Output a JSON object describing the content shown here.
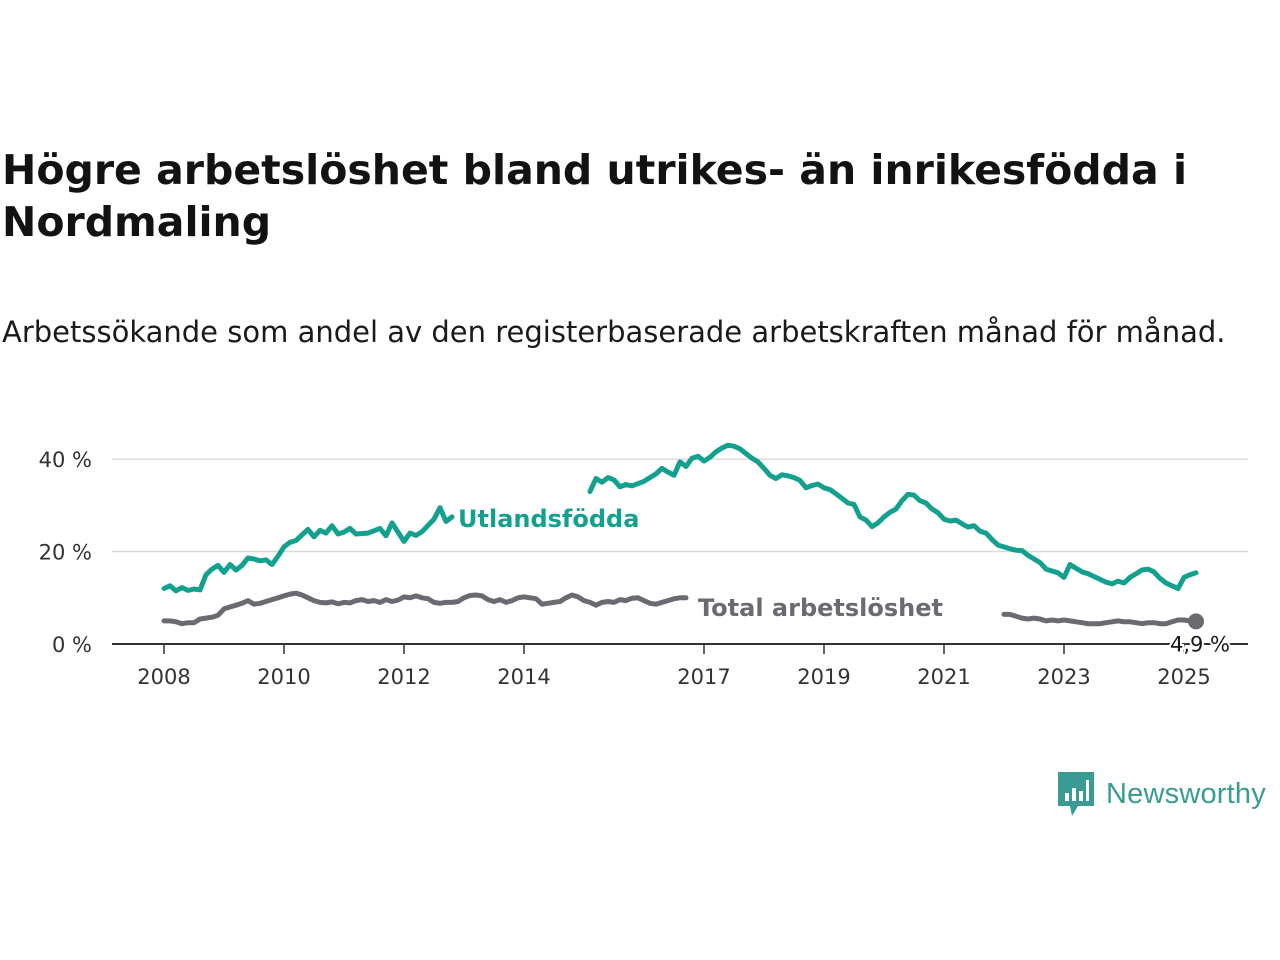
{
  "header": {
    "title": "Högre arbetslöshet bland utrikes- än inrikesfödda i Nordmaling",
    "subtitle": "Arbetssökande som andel av den registerbaserade arbetskraften månad för månad."
  },
  "brand": {
    "name": "Newsworthy",
    "color": "#3a9b94",
    "icon": "newsworthy-logo-icon"
  },
  "chart_data": {
    "type": "line",
    "ylim": [
      0,
      45
    ],
    "y_ticks": [
      {
        "value": 0,
        "label": "0 %"
      },
      {
        "value": 20,
        "label": "20 %"
      },
      {
        "value": 40,
        "label": "40 %"
      }
    ],
    "x_range": [
      2008.0,
      2025.2
    ],
    "x_ticks": [
      {
        "value": 2008,
        "label": "2008"
      },
      {
        "value": 2010,
        "label": "2010"
      },
      {
        "value": 2012,
        "label": "2012"
      },
      {
        "value": 2014,
        "label": "2014"
      },
      {
        "value": 2017,
        "label": "2017"
      },
      {
        "value": 2019,
        "label": "2019"
      },
      {
        "value": 2021,
        "label": "2021"
      },
      {
        "value": 2023,
        "label": "2023"
      },
      {
        "value": 2025,
        "label": "2025"
      }
    ],
    "grid": "horizontal",
    "legend": "inline labels",
    "series": [
      {
        "name": "Utlandsfödda",
        "color": "#14a08e",
        "points": [
          [
            2008.0,
            12.0
          ],
          [
            2008.1,
            12.6
          ],
          [
            2008.2,
            11.5
          ],
          [
            2008.3,
            12.2
          ],
          [
            2008.4,
            11.6
          ],
          [
            2008.5,
            11.9
          ],
          [
            2008.6,
            11.7
          ],
          [
            2008.7,
            15.0
          ],
          [
            2008.8,
            16.2
          ],
          [
            2008.9,
            17.0
          ],
          [
            2009.0,
            15.5
          ],
          [
            2009.1,
            17.2
          ],
          [
            2009.2,
            16.0
          ],
          [
            2009.3,
            17.0
          ],
          [
            2009.4,
            18.6
          ],
          [
            2009.5,
            18.4
          ],
          [
            2009.6,
            18.0
          ],
          [
            2009.7,
            18.2
          ],
          [
            2009.8,
            17.2
          ],
          [
            2009.9,
            19.0
          ],
          [
            2010.0,
            21.0
          ],
          [
            2010.1,
            22.0
          ],
          [
            2010.2,
            22.4
          ],
          [
            2010.3,
            23.6
          ],
          [
            2010.4,
            24.8
          ],
          [
            2010.5,
            23.2
          ],
          [
            2010.6,
            24.6
          ],
          [
            2010.7,
            24.0
          ],
          [
            2010.8,
            25.6
          ],
          [
            2010.9,
            23.8
          ],
          [
            2011.0,
            24.2
          ],
          [
            2011.1,
            25.0
          ],
          [
            2011.2,
            23.8
          ],
          [
            2011.4,
            24.0
          ],
          [
            2011.6,
            25.0
          ],
          [
            2011.7,
            23.4
          ],
          [
            2011.8,
            26.2
          ],
          [
            2011.9,
            24.2
          ],
          [
            2012.0,
            22.2
          ],
          [
            2012.1,
            24.0
          ],
          [
            2012.2,
            23.5
          ],
          [
            2012.3,
            24.3
          ],
          [
            2012.5,
            27.0
          ],
          [
            2012.6,
            29.5
          ],
          [
            2012.7,
            26.5
          ],
          [
            2012.8,
            27.5
          ],
          [
            2015.1,
            33.0
          ],
          [
            2015.2,
            35.8
          ],
          [
            2015.3,
            35.0
          ],
          [
            2015.4,
            36.0
          ],
          [
            2015.5,
            35.5
          ],
          [
            2015.6,
            34.0
          ],
          [
            2015.7,
            34.5
          ],
          [
            2015.8,
            34.2
          ],
          [
            2016.0,
            35.2
          ],
          [
            2016.2,
            36.8
          ],
          [
            2016.3,
            38.0
          ],
          [
            2016.4,
            37.2
          ],
          [
            2016.5,
            36.5
          ],
          [
            2016.6,
            39.4
          ],
          [
            2016.7,
            38.4
          ],
          [
            2016.8,
            40.2
          ],
          [
            2016.9,
            40.6
          ],
          [
            2017.0,
            39.6
          ],
          [
            2017.1,
            40.4
          ],
          [
            2017.2,
            41.6
          ],
          [
            2017.3,
            42.4
          ],
          [
            2017.4,
            43.0
          ],
          [
            2017.5,
            42.8
          ],
          [
            2017.6,
            42.2
          ],
          [
            2017.7,
            41.2
          ],
          [
            2017.8,
            40.2
          ],
          [
            2017.9,
            39.4
          ],
          [
            2018.0,
            38.0
          ],
          [
            2018.1,
            36.5
          ],
          [
            2018.2,
            35.8
          ],
          [
            2018.3,
            36.6
          ],
          [
            2018.4,
            36.4
          ],
          [
            2018.5,
            36.0
          ],
          [
            2018.6,
            35.4
          ],
          [
            2018.7,
            33.8
          ],
          [
            2018.8,
            34.3
          ],
          [
            2018.9,
            34.6
          ],
          [
            2019.0,
            33.8
          ],
          [
            2019.1,
            33.4
          ],
          [
            2019.2,
            32.5
          ],
          [
            2019.3,
            31.5
          ],
          [
            2019.4,
            30.5
          ],
          [
            2019.5,
            30.2
          ],
          [
            2019.6,
            27.5
          ],
          [
            2019.7,
            26.8
          ],
          [
            2019.8,
            25.4
          ],
          [
            2019.9,
            26.2
          ],
          [
            2020.0,
            27.5
          ],
          [
            2020.1,
            28.5
          ],
          [
            2020.2,
            29.2
          ],
          [
            2020.3,
            31.0
          ],
          [
            2020.4,
            32.4
          ],
          [
            2020.5,
            32.2
          ],
          [
            2020.6,
            31.0
          ],
          [
            2020.7,
            30.5
          ],
          [
            2020.8,
            29.2
          ],
          [
            2020.9,
            28.4
          ],
          [
            2021.0,
            27.0
          ],
          [
            2021.1,
            26.6
          ],
          [
            2021.2,
            26.8
          ],
          [
            2021.3,
            26.0
          ],
          [
            2021.4,
            25.3
          ],
          [
            2021.5,
            25.6
          ],
          [
            2021.6,
            24.4
          ],
          [
            2021.7,
            24.0
          ],
          [
            2021.8,
            22.6
          ],
          [
            2021.9,
            21.4
          ],
          [
            2022.0,
            21.0
          ],
          [
            2022.1,
            20.6
          ],
          [
            2022.2,
            20.3
          ],
          [
            2022.3,
            20.2
          ],
          [
            2022.4,
            19.2
          ],
          [
            2022.5,
            18.4
          ],
          [
            2022.6,
            17.6
          ],
          [
            2022.7,
            16.2
          ],
          [
            2022.8,
            15.8
          ],
          [
            2022.9,
            15.4
          ],
          [
            2023.0,
            14.4
          ],
          [
            2023.1,
            17.2
          ],
          [
            2023.2,
            16.4
          ],
          [
            2023.3,
            15.6
          ],
          [
            2023.4,
            15.2
          ],
          [
            2023.5,
            14.6
          ],
          [
            2023.6,
            14.0
          ],
          [
            2023.7,
            13.4
          ],
          [
            2023.8,
            13.0
          ],
          [
            2023.9,
            13.6
          ],
          [
            2024.0,
            13.2
          ],
          [
            2024.1,
            14.4
          ],
          [
            2024.2,
            15.2
          ],
          [
            2024.3,
            16.0
          ],
          [
            2024.4,
            16.2
          ],
          [
            2024.5,
            15.6
          ],
          [
            2024.6,
            14.2
          ],
          [
            2024.7,
            13.2
          ],
          [
            2024.8,
            12.6
          ],
          [
            2024.9,
            12.0
          ],
          [
            2025.0,
            14.4
          ],
          [
            2025.1,
            15.0
          ],
          [
            2025.2,
            15.4
          ]
        ]
      },
      {
        "name": "Total arbetslöshet",
        "color": "#6b6a70",
        "end_value_label": "4,9 %",
        "points": [
          [
            2008.0,
            5.0
          ],
          [
            2008.1,
            5.0
          ],
          [
            2008.2,
            4.8
          ],
          [
            2008.3,
            4.4
          ],
          [
            2008.4,
            4.6
          ],
          [
            2008.5,
            4.6
          ],
          [
            2008.6,
            5.4
          ],
          [
            2008.7,
            5.6
          ],
          [
            2008.8,
            5.8
          ],
          [
            2008.9,
            6.2
          ],
          [
            2009.0,
            7.6
          ],
          [
            2009.1,
            8.0
          ],
          [
            2009.2,
            8.4
          ],
          [
            2009.3,
            8.8
          ],
          [
            2009.4,
            9.4
          ],
          [
            2009.5,
            8.6
          ],
          [
            2009.6,
            8.8
          ],
          [
            2009.7,
            9.2
          ],
          [
            2009.8,
            9.6
          ],
          [
            2009.9,
            10.0
          ],
          [
            2010.0,
            10.4
          ],
          [
            2010.1,
            10.8
          ],
          [
            2010.2,
            11.0
          ],
          [
            2010.3,
            10.6
          ],
          [
            2010.4,
            10.0
          ],
          [
            2010.5,
            9.4
          ],
          [
            2010.6,
            9.0
          ],
          [
            2010.7,
            8.9
          ],
          [
            2010.8,
            9.1
          ],
          [
            2010.9,
            8.7
          ],
          [
            2011.0,
            9.0
          ],
          [
            2011.1,
            8.9
          ],
          [
            2011.2,
            9.4
          ],
          [
            2011.3,
            9.6
          ],
          [
            2011.4,
            9.2
          ],
          [
            2011.5,
            9.4
          ],
          [
            2011.6,
            9.0
          ],
          [
            2011.7,
            9.6
          ],
          [
            2011.8,
            9.2
          ],
          [
            2011.9,
            9.5
          ],
          [
            2012.0,
            10.2
          ],
          [
            2012.1,
            10.0
          ],
          [
            2012.2,
            10.4
          ],
          [
            2012.3,
            10.0
          ],
          [
            2012.4,
            9.8
          ],
          [
            2012.5,
            9.0
          ],
          [
            2012.6,
            8.8
          ],
          [
            2012.7,
            9.0
          ],
          [
            2012.8,
            9.0
          ],
          [
            2012.9,
            9.2
          ],
          [
            2013.0,
            10.0
          ],
          [
            2013.1,
            10.5
          ],
          [
            2013.2,
            10.6
          ],
          [
            2013.3,
            10.4
          ],
          [
            2013.4,
            9.6
          ],
          [
            2013.5,
            9.2
          ],
          [
            2013.6,
            9.6
          ],
          [
            2013.7,
            9.0
          ],
          [
            2013.8,
            9.4
          ],
          [
            2013.9,
            10.0
          ],
          [
            2014.0,
            10.2
          ],
          [
            2014.1,
            10.0
          ],
          [
            2014.2,
            9.8
          ],
          [
            2014.3,
            8.6
          ],
          [
            2014.4,
            8.8
          ],
          [
            2014.5,
            9.0
          ],
          [
            2014.6,
            9.2
          ],
          [
            2014.7,
            10.0
          ],
          [
            2014.8,
            10.6
          ],
          [
            2014.9,
            10.2
          ],
          [
            2015.0,
            9.4
          ],
          [
            2015.1,
            9.0
          ],
          [
            2015.2,
            8.4
          ],
          [
            2015.3,
            9.0
          ],
          [
            2015.4,
            9.2
          ],
          [
            2015.5,
            9.0
          ],
          [
            2015.6,
            9.6
          ],
          [
            2015.7,
            9.4
          ],
          [
            2015.8,
            9.9
          ],
          [
            2015.9,
            10.0
          ],
          [
            2016.0,
            9.4
          ],
          [
            2016.1,
            8.8
          ],
          [
            2016.2,
            8.6
          ],
          [
            2016.3,
            9.0
          ],
          [
            2016.4,
            9.4
          ],
          [
            2016.5,
            9.8
          ],
          [
            2016.6,
            10.0
          ],
          [
            2016.7,
            10.0
          ],
          [
            2022.0,
            6.4
          ],
          [
            2022.1,
            6.4
          ],
          [
            2022.2,
            6.0
          ],
          [
            2022.3,
            5.6
          ],
          [
            2022.4,
            5.4
          ],
          [
            2022.5,
            5.6
          ],
          [
            2022.6,
            5.4
          ],
          [
            2022.7,
            5.0
          ],
          [
            2022.8,
            5.2
          ],
          [
            2022.9,
            5.0
          ],
          [
            2023.0,
            5.2
          ],
          [
            2023.1,
            5.0
          ],
          [
            2023.2,
            4.8
          ],
          [
            2023.3,
            4.6
          ],
          [
            2023.4,
            4.4
          ],
          [
            2023.5,
            4.4
          ],
          [
            2023.6,
            4.4
          ],
          [
            2023.7,
            4.6
          ],
          [
            2023.8,
            4.8
          ],
          [
            2023.9,
            5.0
          ],
          [
            2024.0,
            4.8
          ],
          [
            2024.1,
            4.8
          ],
          [
            2024.2,
            4.6
          ],
          [
            2024.3,
            4.4
          ],
          [
            2024.4,
            4.6
          ],
          [
            2024.5,
            4.6
          ],
          [
            2024.6,
            4.4
          ],
          [
            2024.7,
            4.4
          ],
          [
            2024.8,
            4.8
          ],
          [
            2024.9,
            5.2
          ],
          [
            2025.0,
            5.2
          ],
          [
            2025.1,
            5.0
          ],
          [
            2025.2,
            4.9
          ]
        ]
      }
    ]
  }
}
